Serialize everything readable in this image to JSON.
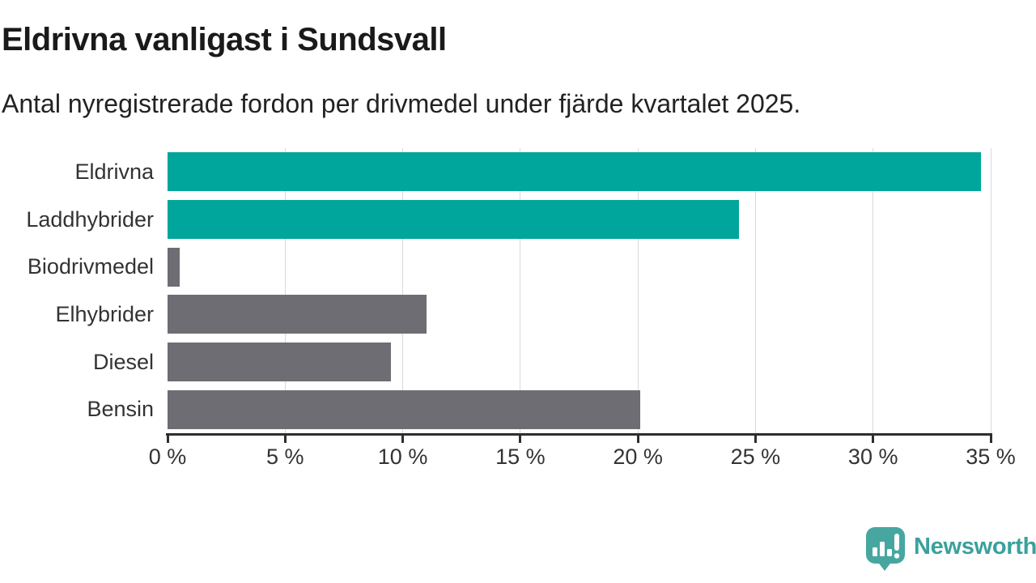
{
  "title": "Eldrivna vanligast i Sundsvall",
  "subtitle": "Antal nyregistrerade fordon per drivmedel under fjärde kvartalet 2025.",
  "colors": {
    "highlight_bar": "#00a59b",
    "default_bar": "#6d6d73",
    "gridline": "#d9d9d9",
    "axis": "#2e2e2e",
    "title_text": "#1a1a1a",
    "label_text": "#333333",
    "logo_teal": "#3aa19b",
    "logo_mark_teal": "#47a7a0"
  },
  "chart_data": {
    "type": "bar",
    "orientation": "horizontal",
    "title": "Eldrivna vanligast i Sundsvall",
    "subtitle": "Antal nyregistrerade fordon per drivmedel under fjärde kvartalet 2025.",
    "categories": [
      "Eldrivna",
      "Laddhybrider",
      "Biodrivmedel",
      "Elhybrider",
      "Diesel",
      "Bensin"
    ],
    "values": [
      34.6,
      24.3,
      0.5,
      11.0,
      9.5,
      20.1
    ],
    "unit": "%",
    "bar_colors": [
      "#00a59b",
      "#00a59b",
      "#6d6d73",
      "#6d6d73",
      "#6d6d73",
      "#6d6d73"
    ],
    "xlim": [
      0,
      35
    ],
    "x_tick_values": [
      0,
      5,
      10,
      15,
      20,
      25,
      30,
      35
    ],
    "x_tick_labels": [
      "0 %",
      "5 %",
      "10 %",
      "15 %",
      "20 %",
      "25 %",
      "30 %",
      "35 %"
    ],
    "grid": true,
    "legend": false,
    "xlabel": "",
    "ylabel": ""
  },
  "footer": {
    "brand": "Newsworthy"
  }
}
